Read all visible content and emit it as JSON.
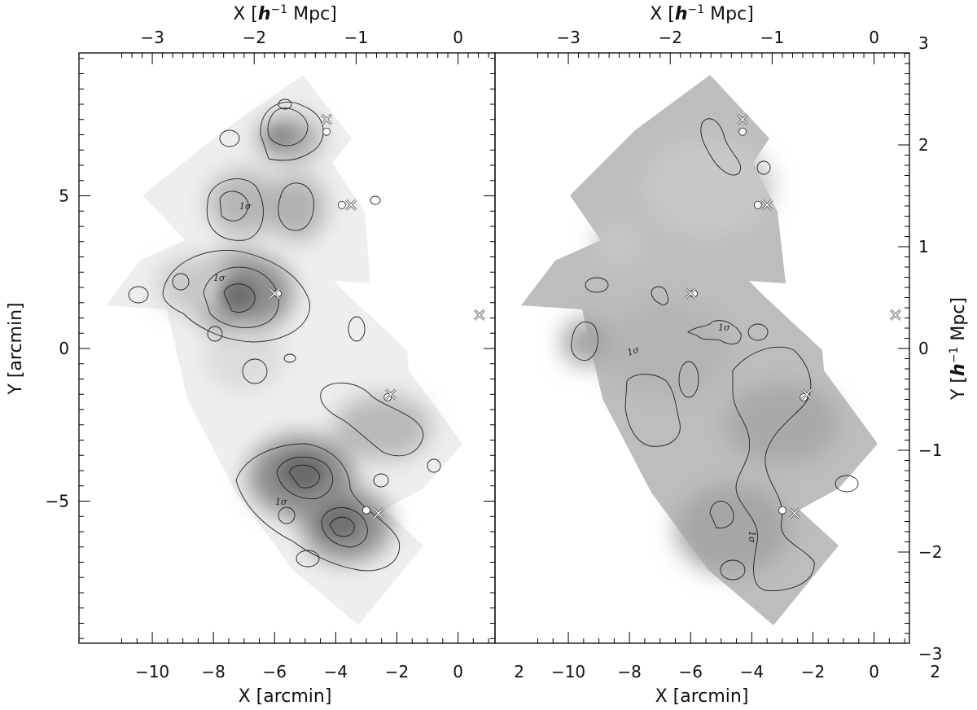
{
  "chart_data": [
    {
      "type": "heatmap",
      "panel": "left",
      "xlabel_bottom": "X [arcmin]",
      "xlabel_top_prefix": "X ",
      "xlabel_top_unit": "h",
      "xlabel_top_exp": "−1",
      "xlabel_top_suffix": " Mpc",
      "ylabel_left": "Y [arcmin]",
      "xlim_arcmin": [
        -11.2,
        2.4
      ],
      "ylim_arcmin": [
        -9.7,
        9.6
      ],
      "x_ticks_arcmin": [
        "−10",
        "−8",
        "−6",
        "−4",
        "−2",
        "0",
        "2"
      ],
      "x_ticks_mpc": [
        "−3",
        "−2",
        "−1",
        "0"
      ],
      "y_ticks_arcmin": [
        "−5",
        "0",
        "5"
      ],
      "contour_label": "1σ",
      "cluster_positions_circle": [
        [
          -4.3,
          7.1
        ],
        [
          -3.8,
          4.7
        ],
        [
          -5.9,
          1.8
        ],
        [
          -2.3,
          -1.6
        ],
        [
          -3.0,
          -5.3
        ]
      ],
      "cluster_positions_cross": [
        [
          -4.3,
          7.5
        ],
        [
          -3.5,
          4.7
        ],
        [
          -6.0,
          1.8
        ],
        [
          -2.2,
          -1.5
        ],
        [
          -2.6,
          -5.4
        ],
        [
          0.7,
          1.1
        ]
      ]
    },
    {
      "type": "heatmap",
      "panel": "right",
      "xlabel_bottom": "X [arcmin]",
      "xlabel_top_prefix": "X ",
      "xlabel_top_unit": "h",
      "xlabel_top_exp": "−1",
      "xlabel_top_suffix": " Mpc",
      "ylabel_right_prefix": "Y ",
      "ylabel_right_unit": "h",
      "ylabel_right_exp": "−1",
      "ylabel_right_suffix": " Mpc",
      "xlim_arcmin": [
        -11.2,
        2.4
      ],
      "ylim_arcmin": [
        -9.7,
        9.6
      ],
      "x_ticks_arcmin": [
        "−10",
        "−8",
        "−6",
        "−4",
        "−2",
        "0",
        "2"
      ],
      "x_ticks_mpc": [
        "−3",
        "−2",
        "−1",
        "0"
      ],
      "y_ticks_mpc": [
        "3",
        "2",
        "1",
        "0",
        "−1",
        "−2",
        "−3"
      ],
      "contour_label": "1σ",
      "cluster_positions_circle": [
        [
          -4.3,
          7.1
        ],
        [
          -3.8,
          4.7
        ],
        [
          -5.9,
          1.8
        ],
        [
          -2.3,
          -1.6
        ],
        [
          -3.0,
          -5.3
        ]
      ],
      "cluster_positions_cross": [
        [
          -4.3,
          7.5
        ],
        [
          -3.5,
          4.7
        ],
        [
          -6.0,
          1.8
        ],
        [
          -2.2,
          -1.5
        ],
        [
          -2.6,
          -5.4
        ],
        [
          0.7,
          1.1
        ]
      ]
    }
  ]
}
